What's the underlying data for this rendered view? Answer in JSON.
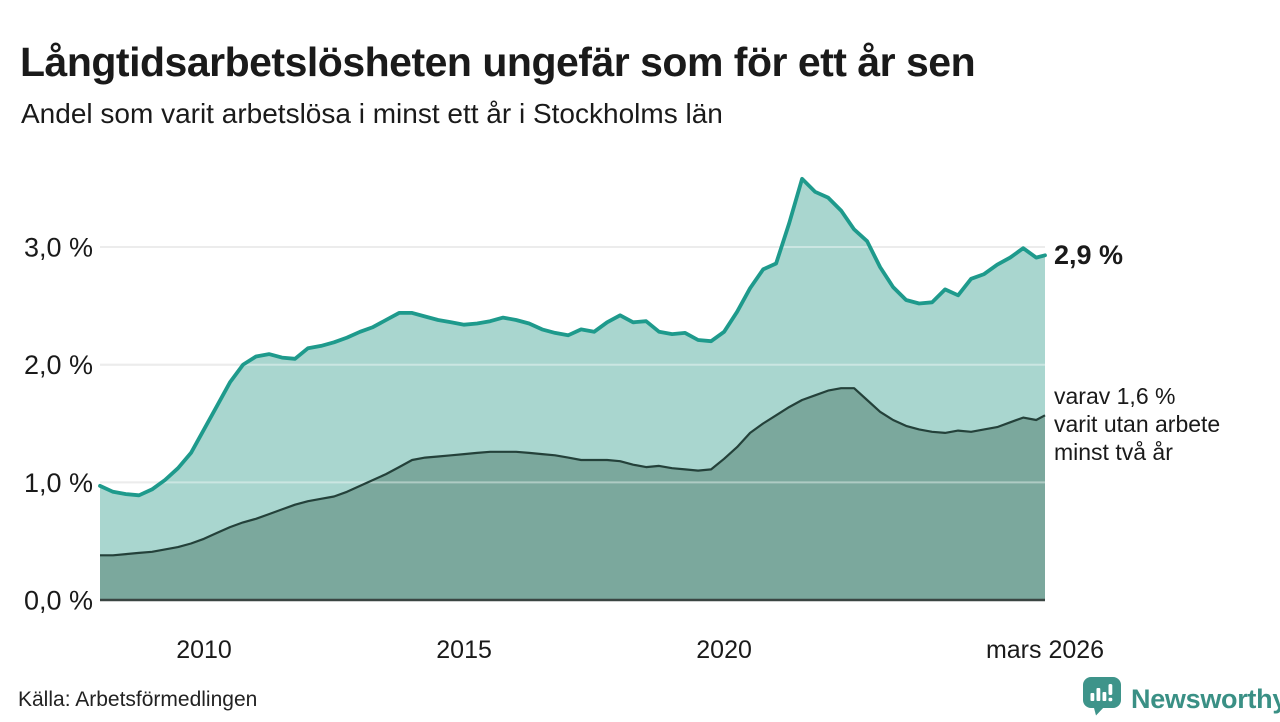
{
  "header": {
    "title": "Långtidsarbetslösheten ungefär som för ett år sen",
    "subtitle": "Andel som varit arbetslösa i minst ett år i Stockholms län"
  },
  "chart_data": {
    "type": "area",
    "title": "Långtidsarbetslösheten ungefär som för ett år sen",
    "subtitle": "Andel som varit arbetslösa i minst ett år i Stockholms län",
    "xlabel": "",
    "ylabel": "",
    "ylim": [
      0,
      3.7
    ],
    "grid": "horizontal",
    "legend_position": "none",
    "x_unit": "decimal_year",
    "x": [
      2008,
      2008.25,
      2008.5,
      2008.75,
      2009,
      2009.25,
      2009.5,
      2009.75,
      2010,
      2010.25,
      2010.5,
      2010.75,
      2011,
      2011.25,
      2011.5,
      2011.75,
      2012,
      2012.25,
      2012.5,
      2012.75,
      2013,
      2013.25,
      2013.5,
      2013.75,
      2014,
      2014.25,
      2014.5,
      2014.75,
      2015,
      2015.25,
      2015.5,
      2015.75,
      2016,
      2016.25,
      2016.5,
      2016.75,
      2017,
      2017.25,
      2017.5,
      2017.75,
      2018,
      2018.25,
      2018.5,
      2018.75,
      2019,
      2019.25,
      2019.5,
      2019.75,
      2020,
      2020.25,
      2020.5,
      2020.75,
      2021,
      2021.25,
      2021.5,
      2021.75,
      2022,
      2022.25,
      2022.5,
      2022.75,
      2023,
      2023.25,
      2023.5,
      2023.75,
      2024,
      2024.25,
      2024.5,
      2024.75,
      2025,
      2025.25,
      2025.5,
      2025.75,
      2026,
      2026.17
    ],
    "series": [
      {
        "name": "Andel arbetslösa minst ett år",
        "line_color": "#1e9a8c",
        "fill_color": "#a9d6cf",
        "end_value_label": "2,9 %",
        "values": [
          0.97,
          0.92,
          0.9,
          0.89,
          0.94,
          1.02,
          1.12,
          1.25,
          1.45,
          1.65,
          1.85,
          2.0,
          2.07,
          2.09,
          2.06,
          2.05,
          2.14,
          2.16,
          2.19,
          2.23,
          2.28,
          2.32,
          2.38,
          2.44,
          2.44,
          2.41,
          2.38,
          2.36,
          2.34,
          2.35,
          2.37,
          2.4,
          2.38,
          2.35,
          2.3,
          2.27,
          2.25,
          2.3,
          2.28,
          2.36,
          2.42,
          2.36,
          2.37,
          2.28,
          2.26,
          2.27,
          2.21,
          2.2,
          2.28,
          2.45,
          2.65,
          2.81,
          2.86,
          3.2,
          3.58,
          3.47,
          3.42,
          3.31,
          3.15,
          3.05,
          2.83,
          2.66,
          2.55,
          2.52,
          2.53,
          2.64,
          2.59,
          2.73,
          2.77,
          2.85,
          2.91,
          2.99,
          2.91,
          2.93
        ]
      },
      {
        "name": "Andel utan arbete minst två år",
        "line_color": "#24413a",
        "fill_color": "#7ba89d",
        "end_value_label": "1,6 %",
        "values": [
          0.38,
          0.38,
          0.39,
          0.4,
          0.41,
          0.43,
          0.45,
          0.48,
          0.52,
          0.57,
          0.62,
          0.66,
          0.69,
          0.73,
          0.77,
          0.81,
          0.84,
          0.86,
          0.88,
          0.92,
          0.97,
          1.02,
          1.07,
          1.13,
          1.19,
          1.21,
          1.22,
          1.23,
          1.24,
          1.25,
          1.26,
          1.26,
          1.26,
          1.25,
          1.24,
          1.23,
          1.21,
          1.19,
          1.19,
          1.19,
          1.18,
          1.15,
          1.13,
          1.14,
          1.12,
          1.11,
          1.1,
          1.11,
          1.2,
          1.3,
          1.42,
          1.5,
          1.57,
          1.64,
          1.7,
          1.74,
          1.78,
          1.8,
          1.8,
          1.7,
          1.6,
          1.53,
          1.48,
          1.45,
          1.43,
          1.42,
          1.44,
          1.43,
          1.45,
          1.47,
          1.51,
          1.55,
          1.53,
          1.57
        ]
      }
    ],
    "yticks": [
      {
        "value": 0,
        "label": "0,0 %"
      },
      {
        "value": 1,
        "label": "1,0 %"
      },
      {
        "value": 2,
        "label": "2,0 %"
      },
      {
        "value": 3,
        "label": "3,0 %"
      }
    ],
    "xticks": [
      {
        "value": 2010,
        "label": "2010"
      },
      {
        "value": 2015,
        "label": "2015"
      },
      {
        "value": 2020,
        "label": "2020"
      },
      {
        "value": 2026.17,
        "label": "mars 2026"
      }
    ],
    "annotations": {
      "primary": "2,9 %",
      "secondary_lines": [
        "varav 1,6 %",
        "varit utan arbete",
        "minst två år"
      ]
    },
    "colors": {
      "gridline": "#e0e0e0",
      "axis_line": "#3a4542",
      "text": "#1a1a1a"
    }
  },
  "footer": {
    "source": "Källa: Arbetsförmedlingen",
    "brand": "Newsworthy",
    "logo_icon": "newsworthy-bubble-bar-chart-icon",
    "brand_color": "#3e948a"
  }
}
